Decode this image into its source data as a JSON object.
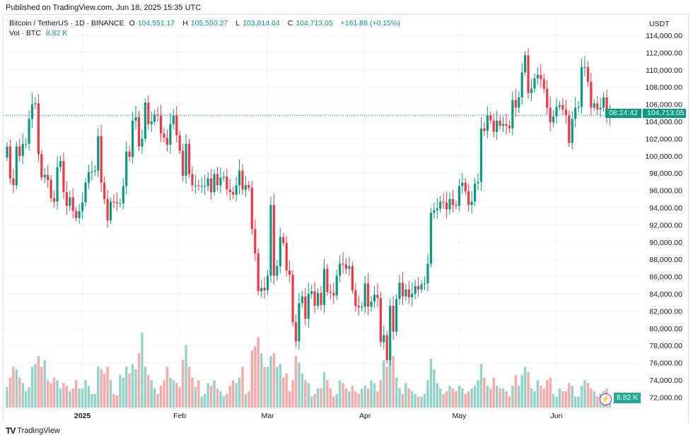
{
  "header": {
    "published": "Published on TradingView.com, Jun 18, 2025 15:35 UTC"
  },
  "legend": {
    "symbol": "Bitcoin / TetherUS · 1D · BINANCE",
    "o_label": "O",
    "o": "104,551.17",
    "h_label": "H",
    "h": "105,550.27",
    "l_label": "L",
    "l": "103,814.04",
    "c_label": "C",
    "c": "104,713.05",
    "change": "+161.88 (+0.15%)",
    "vol_label": "Vol · BTC",
    "vol": "8.82 K"
  },
  "price_axis": {
    "unit": "USDT",
    "last_price": "104,713.05",
    "countdown": "08:24:42",
    "vol_badge": "8.82 K"
  },
  "footer": {
    "logo_text": "TradingView"
  },
  "colors": {
    "up": "#089981",
    "down": "#f23645",
    "vol_up": "#92d2c8",
    "vol_down": "#f7a9a7",
    "grid": "#f0f3fa"
  },
  "chart_data": {
    "type": "candlestick",
    "interval": "1D",
    "start_date": "2024-12-08",
    "first_open": 99.8,
    "ylim": [
      72000,
      115000
    ],
    "yticks": [
      "114,000.00",
      "112,000.00",
      "110,000.00",
      "108,000.00",
      "106,000.00",
      "104,000.00",
      "102,000.00",
      "100,000.00",
      "98,000.00",
      "96,000.00",
      "94,000.00",
      "92,000.00",
      "90,000.00",
      "88,000.00",
      "86,000.00",
      "84,000.00",
      "82,000.00",
      "80,000.00",
      "78,000.00",
      "76,000.00",
      "74,000.00",
      "72,000.00"
    ],
    "xticks": [
      {
        "label": "2025",
        "date": "2025-01-01",
        "bold": true
      },
      {
        "label": "Feb",
        "date": "2025-02-01"
      },
      {
        "label": "Mar",
        "date": "2025-03-01"
      },
      {
        "label": "Apr",
        "date": "2025-04-01"
      },
      {
        "label": "May",
        "date": "2025-05-01"
      },
      {
        "label": "Jun",
        "date": "2025-06-01"
      }
    ],
    "close_thousands": [
      101.1,
      97.4,
      96.6,
      101.1,
      100.0,
      101.4,
      101.4,
      104.3,
      106.0,
      106.1,
      100.2,
      97.5,
      97.8,
      97.2,
      95.1,
      94.7,
      98.7,
      99.4,
      95.8,
      94.2,
      95.2,
      93.6,
      92.8,
      93.6,
      94.6,
      96.9,
      98.1,
      98.2,
      98.3,
      102.3,
      96.9,
      95.0,
      92.5,
      94.7,
      94.6,
      94.5,
      94.5,
      96.5,
      100.5,
      99.9,
      104.1,
      104.5,
      101.1,
      102.0,
      106.2,
      103.7,
      104.0,
      104.8,
      104.7,
      102.6,
      102.1,
      101.3,
      103.7,
      104.7,
      102.4,
      100.6,
      97.7,
      101.4,
      97.9,
      96.6,
      96.6,
      96.5,
      96.5,
      96.5,
      97.4,
      95.8,
      97.9,
      96.6,
      97.5,
      97.6,
      96.1,
      95.8,
      95.5,
      96.6,
      98.3,
      96.1,
      96.6,
      96.3,
      91.5,
      88.7,
      84.3,
      84.7,
      84.4,
      86.1,
      94.3,
      86.1,
      87.2,
      90.6,
      89.9,
      86.7,
      86.2,
      80.7,
      78.5,
      82.9,
      83.7,
      81.1,
      84.0,
      84.3,
      82.6,
      84.1,
      82.7,
      86.9,
      84.2,
      84.1,
      83.8,
      86.1,
      87.5,
      87.4,
      86.9,
      87.2,
      84.4,
      82.6,
      82.4,
      82.5,
      85.2,
      82.5,
      83.1,
      83.9,
      83.5,
      78.4,
      79.2,
      76.3,
      82.6,
      79.6,
      83.4,
      85.3,
      83.7,
      84.5,
      83.6,
      84.0,
      84.9,
      84.5,
      85.1,
      85.2,
      87.5,
      93.4,
      93.7,
      93.9,
      94.7,
      94.6,
      93.8,
      95.0,
      94.3,
      94.2,
      96.5,
      96.9,
      95.9,
      94.3,
      94.7,
      96.8,
      97.0,
      103.2,
      102.9,
      104.7,
      104.1,
      102.8,
      104.1,
      103.5,
      103.7,
      103.5,
      103.2,
      106.5,
      105.6,
      106.8,
      109.7,
      111.7,
      107.3,
      107.8,
      109.0,
      109.4,
      108.9,
      107.8,
      105.6,
      103.9,
      104.6,
      105.7,
      105.9,
      105.4,
      104.7,
      101.5,
      104.3,
      105.6,
      105.7,
      110.3,
      110.3,
      108.6,
      105.6,
      106.1,
      105.4,
      105.6,
      106.8,
      104.55,
      104.713
    ],
    "volume_k_btc": [
      15,
      22,
      30,
      28,
      22,
      18,
      12,
      15,
      30,
      32,
      38,
      30,
      35,
      20,
      18,
      22,
      20,
      14,
      18,
      16,
      12,
      14,
      20,
      14,
      14,
      20,
      16,
      10,
      10,
      30,
      28,
      25,
      30,
      20,
      10,
      9,
      24,
      22,
      30,
      25,
      32,
      28,
      40,
      55,
      30,
      24,
      20,
      14,
      10,
      16,
      20,
      30,
      22,
      20,
      18,
      15,
      35,
      46,
      30,
      22,
      15,
      20,
      8,
      10,
      18,
      16,
      20,
      14,
      12,
      8,
      10,
      16,
      20,
      18,
      22,
      30,
      10,
      12,
      42,
      45,
      52,
      40,
      30,
      30,
      38,
      40,
      30,
      32,
      22,
      25,
      12,
      20,
      38,
      33,
      25,
      20,
      18,
      8,
      10,
      14,
      14,
      26,
      20,
      14,
      8,
      10,
      20,
      18,
      14,
      12,
      16,
      12,
      10,
      14,
      16,
      14,
      20,
      18,
      12,
      20,
      35,
      30,
      45,
      38,
      22,
      14,
      10,
      18,
      14,
      12,
      10,
      8,
      8,
      10,
      20,
      36,
      28,
      18,
      14,
      10,
      12,
      16,
      14,
      12,
      16,
      14,
      10,
      12,
      14,
      16,
      20,
      32,
      22,
      16,
      14,
      22,
      16,
      14,
      14,
      12,
      8,
      16,
      24,
      16,
      24,
      30,
      26,
      14,
      12,
      20,
      16,
      14,
      20,
      22,
      10,
      8,
      14,
      12,
      12,
      18,
      16,
      8,
      8,
      16,
      20,
      18,
      14,
      12,
      8,
      10,
      12,
      14,
      8.82
    ],
    "last_price": 104713.05
  }
}
